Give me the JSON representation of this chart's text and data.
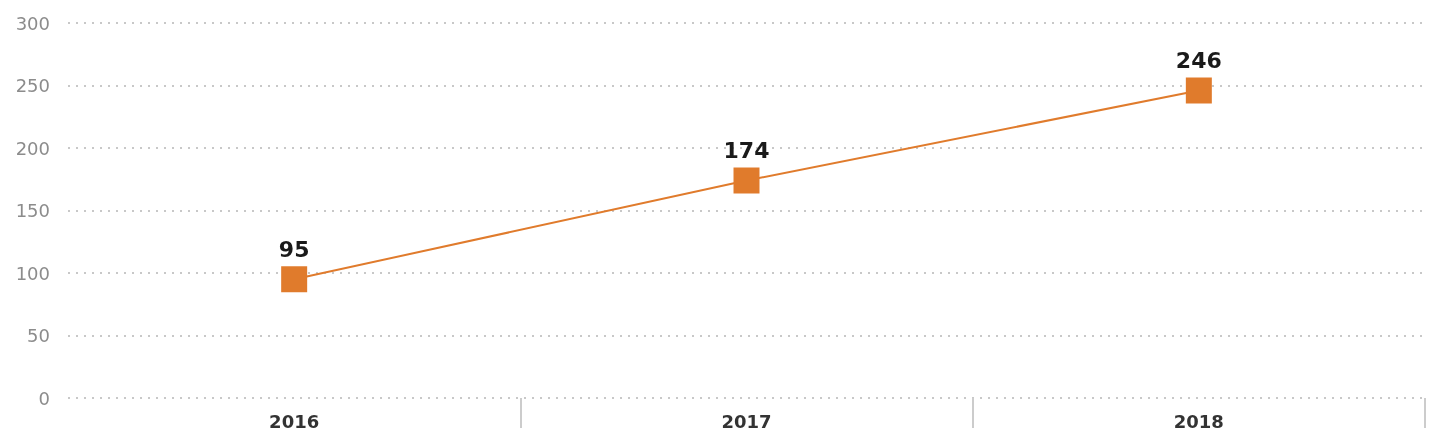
{
  "chart_data": {
    "type": "line",
    "categories": [
      "2016",
      "2017",
      "2018"
    ],
    "series": [
      {
        "color": "#e07b2c",
        "values": [
          95,
          174,
          246
        ]
      }
    ],
    "ylim": [
      0,
      300
    ],
    "yticks": [
      0,
      50,
      100,
      150,
      200,
      250,
      300
    ],
    "grid": "y",
    "marker": "square",
    "line_style": "solid",
    "data_labels": true
  }
}
